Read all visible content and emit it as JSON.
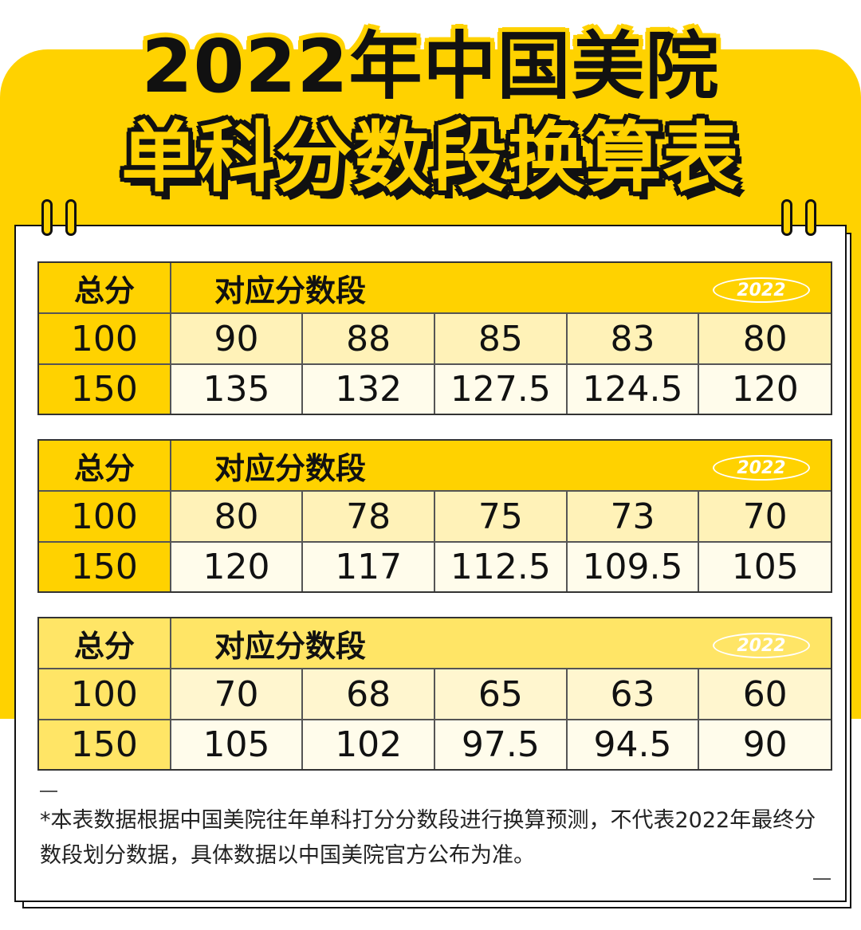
{
  "title": {
    "line1": "2022年中国美院",
    "line2": "单科分数段换算表"
  },
  "colors": {
    "accent": "#FFD200",
    "ink": "#111111"
  },
  "tables": [
    {
      "header": {
        "total_label": "总分",
        "range_label": "对应分数段",
        "badge": "2022"
      },
      "rows": [
        {
          "total": "100",
          "values": [
            "90",
            "88",
            "85",
            "83",
            "80"
          ]
        },
        {
          "total": "150",
          "values": [
            "135",
            "132",
            "127.5",
            "124.5",
            "120"
          ]
        }
      ]
    },
    {
      "header": {
        "total_label": "总分",
        "range_label": "对应分数段",
        "badge": "2022"
      },
      "rows": [
        {
          "total": "100",
          "values": [
            "80",
            "78",
            "75",
            "73",
            "70"
          ]
        },
        {
          "total": "150",
          "values": [
            "120",
            "117",
            "112.5",
            "109.5",
            "105"
          ]
        }
      ]
    },
    {
      "header": {
        "total_label": "总分",
        "range_label": "对应分数段",
        "badge": "2022"
      },
      "rows": [
        {
          "total": "100",
          "values": [
            "70",
            "68",
            "65",
            "63",
            "60"
          ]
        },
        {
          "total": "150",
          "values": [
            "105",
            "102",
            "97.5",
            "94.5",
            "90"
          ]
        }
      ]
    }
  ],
  "note": "*本表数据根据中国美院往年单科打分分数段进行换算预测，不代表2022年最终分数段划分数据，具体数据以中国美院官方公布为准。"
}
